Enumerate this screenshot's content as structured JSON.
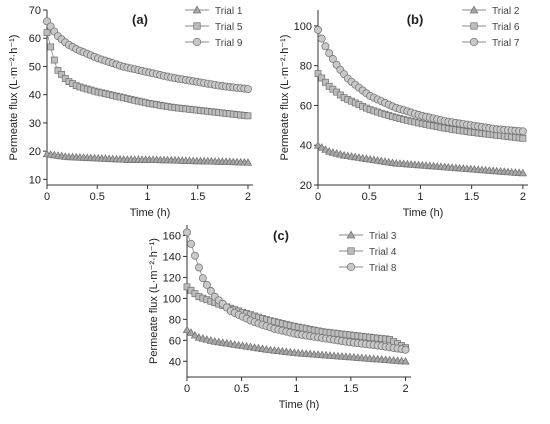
{
  "chart_data": [
    {
      "type": "scatter",
      "panel_label": "(a)",
      "xlabel": "Time (h)",
      "ylabel": "Permeate flux (L·m⁻²·h⁻¹)",
      "xlim": [
        0,
        2.05
      ],
      "ylim": [
        8,
        70
      ],
      "xticks": [
        0,
        0.5,
        1,
        1.5,
        2
      ],
      "xtick_labels": [
        "0",
        "0.5",
        "1",
        "1.5",
        "2"
      ],
      "yticks": [
        10,
        20,
        30,
        40,
        50,
        60,
        70
      ],
      "ytick_labels": [
        "10",
        "20",
        "30",
        "40",
        "50",
        "60",
        "70"
      ],
      "legend_position": "top-right",
      "series": [
        {
          "name": "Trial 1",
          "marker": "triangle",
          "color": "#a6a6a6",
          "x": [
            0,
            0.2,
            0.5,
            0.8,
            1.0,
            1.25,
            1.5,
            1.75,
            2.0
          ],
          "values": [
            19,
            18,
            17.5,
            17,
            17,
            16.8,
            16.5,
            16.3,
            16
          ]
        },
        {
          "name": "Trial 5",
          "marker": "square",
          "color": "#bdbdbd",
          "x": [
            0,
            0.05,
            0.1,
            0.2,
            0.3,
            0.5,
            0.75,
            1.0,
            1.25,
            1.5,
            1.75,
            2.0
          ],
          "values": [
            62,
            55,
            49,
            45,
            43,
            41,
            39,
            37,
            35.5,
            34.5,
            33.5,
            32.5
          ]
        },
        {
          "name": "Trial 9",
          "marker": "circle",
          "color": "#c8c8c8",
          "x": [
            0,
            0.1,
            0.2,
            0.3,
            0.5,
            0.75,
            1.0,
            1.25,
            1.5,
            1.75,
            2.0
          ],
          "values": [
            66,
            61,
            58,
            56,
            53,
            50,
            48,
            46,
            44.5,
            43,
            42
          ]
        }
      ]
    },
    {
      "type": "scatter",
      "panel_label": "(b)",
      "xlabel": "Time (h)",
      "ylabel": "Permeate flux (L·m⁻²·h⁻¹)",
      "xlim": [
        0,
        2.05
      ],
      "ylim": [
        20,
        108
      ],
      "xticks": [
        0,
        0.5,
        1,
        1.5,
        2
      ],
      "xtick_labels": [
        "0",
        "0.5",
        "1",
        "1.5",
        "2"
      ],
      "yticks": [
        20,
        40,
        60,
        80,
        100
      ],
      "ytick_labels": [
        "20",
        "40",
        "60",
        "80",
        "100"
      ],
      "legend_position": "top-right",
      "series": [
        {
          "name": "Trial 2",
          "marker": "triangle",
          "color": "#a6a6a6",
          "x": [
            0,
            0.1,
            0.25,
            0.5,
            0.75,
            1.0,
            1.25,
            1.5,
            1.75,
            2.0
          ],
          "values": [
            40,
            37,
            35,
            33,
            31,
            30,
            29,
            28,
            27,
            26
          ]
        },
        {
          "name": "Trial 6",
          "marker": "square",
          "color": "#bdbdbd",
          "x": [
            0,
            0.1,
            0.25,
            0.5,
            0.75,
            1.0,
            1.25,
            1.5,
            1.75,
            2.0
          ],
          "values": [
            76,
            70,
            64,
            58,
            54,
            51,
            48.5,
            46.5,
            45,
            43.5
          ]
        },
        {
          "name": "Trial 7",
          "marker": "circle",
          "color": "#c8c8c8",
          "x": [
            0,
            0.05,
            0.1,
            0.2,
            0.3,
            0.5,
            0.75,
            1.0,
            1.25,
            1.5,
            1.75,
            2.0
          ],
          "values": [
            98,
            92,
            87,
            79,
            73,
            65,
            59,
            55,
            52,
            50,
            48,
            47
          ]
        }
      ]
    },
    {
      "type": "scatter",
      "panel_label": "(c)",
      "xlabel": "Time (h)",
      "ylabel": "Permeate flux (L·m⁻²·h⁻¹)",
      "xlim": [
        0,
        2.05
      ],
      "ylim": [
        25,
        170
      ],
      "xticks": [
        0,
        0.5,
        1,
        1.5,
        2
      ],
      "xtick_labels": [
        "0",
        "0.5",
        "1",
        "1.5",
        "2"
      ],
      "yticks": [
        40,
        60,
        80,
        100,
        120,
        140,
        160
      ],
      "ytick_labels": [
        "40",
        "60",
        "80",
        "100",
        "120",
        "140",
        "160"
      ],
      "legend_position": "top-right",
      "series": [
        {
          "name": "Trial 3",
          "marker": "triangle",
          "color": "#a6a6a6",
          "x": [
            0,
            0.1,
            0.25,
            0.5,
            0.75,
            1.0,
            1.25,
            1.5,
            1.75,
            2.0
          ],
          "values": [
            70,
            63,
            59,
            55,
            51,
            48,
            46,
            44,
            42,
            40
          ]
        },
        {
          "name": "Trial 4",
          "marker": "square",
          "color": "#bdbdbd",
          "x": [
            0,
            0.1,
            0.25,
            0.5,
            0.75,
            1.0,
            1.25,
            1.5,
            1.75,
            1.85,
            2.0
          ],
          "values": [
            111,
            102,
            96,
            87,
            79,
            73,
            68,
            65,
            62,
            61,
            53
          ]
        },
        {
          "name": "Trial 8",
          "marker": "circle",
          "color": "#c8c8c8",
          "x": [
            0,
            0.05,
            0.1,
            0.15,
            0.25,
            0.4,
            0.6,
            0.8,
            1.0,
            1.25,
            1.5,
            1.75,
            2.0
          ],
          "values": [
            163,
            148,
            132,
            118,
            102,
            88,
            78,
            71,
            66,
            62,
            58,
            55,
            51
          ]
        }
      ]
    }
  ]
}
